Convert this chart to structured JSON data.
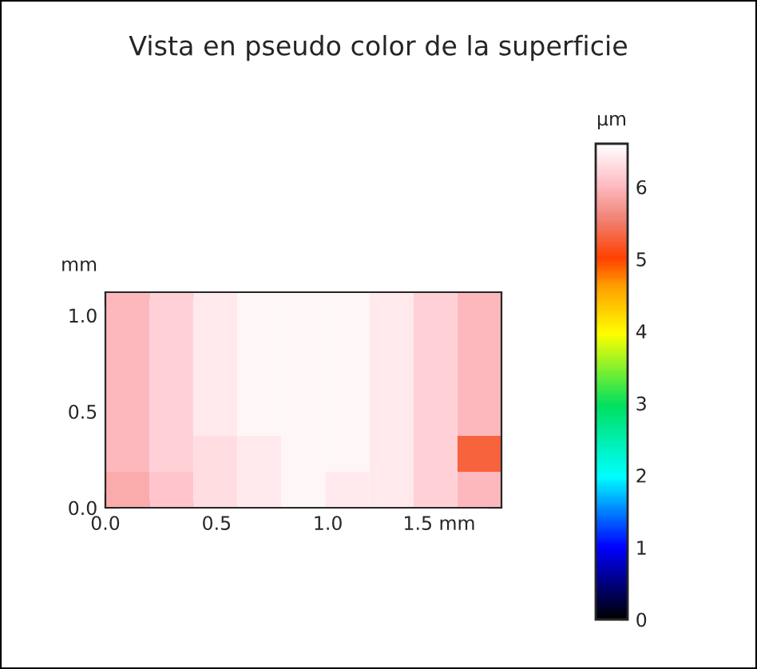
{
  "chart_data": {
    "type": "heatmap",
    "title": "Vista en pseudo color de la superficie",
    "ylabel": "mm",
    "clabel": "µm",
    "cells": [
      [
        6.0,
        6.2,
        6.4,
        6.5,
        6.5,
        6.5,
        6.4,
        6.2,
        6.0
      ],
      [
        6.0,
        6.2,
        6.4,
        6.5,
        6.5,
        6.5,
        6.4,
        6.2,
        6.0
      ],
      [
        6.0,
        6.2,
        6.4,
        6.5,
        6.5,
        6.5,
        6.4,
        6.2,
        6.0
      ],
      [
        6.0,
        6.2,
        6.4,
        6.5,
        6.5,
        6.5,
        6.4,
        6.2,
        6.0
      ],
      [
        6.0,
        6.2,
        6.3,
        6.4,
        6.5,
        6.5,
        6.4,
        6.2,
        5.3
      ],
      [
        5.9,
        6.1,
        6.3,
        6.4,
        6.5,
        6.4,
        6.4,
        6.2,
        6.0
      ]
    ],
    "xlim": [
      0,
      1.78
    ],
    "ylim": [
      0,
      1.12
    ],
    "xticks": [
      {
        "value": 0,
        "label": "0.0"
      },
      0.5,
      {
        "value": 1,
        "label": "1.0"
      },
      {
        "value": 1.5,
        "label": "1.5 mm"
      }
    ],
    "yticks": [
      {
        "value": 0,
        "label": "0.0"
      },
      0.5,
      {
        "value": 1,
        "label": "1.0"
      }
    ],
    "clim": [
      0,
      6.6
    ],
    "cticks": [
      0,
      1,
      2,
      3,
      4,
      5,
      6
    ]
  }
}
